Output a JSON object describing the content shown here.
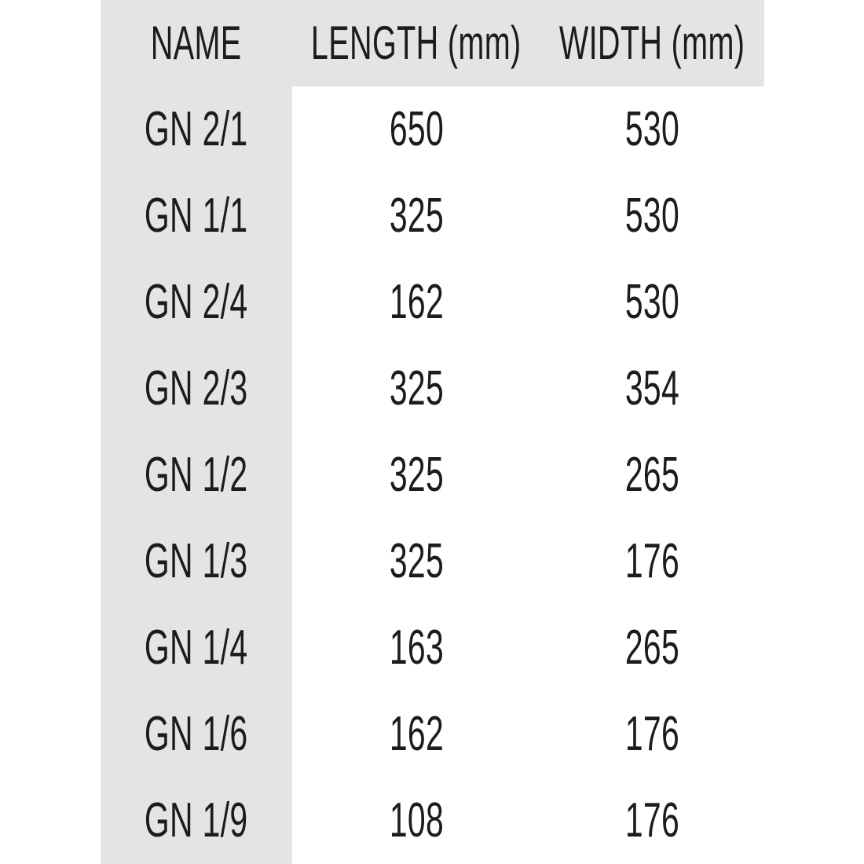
{
  "chart_data": {
    "type": "table",
    "title": "",
    "columns": [
      "NAME",
      "LENGTH (mm)",
      "WIDTH (mm)"
    ],
    "rows": [
      [
        "GN 2/1",
        "650",
        "530"
      ],
      [
        "GN 1/1",
        "325",
        "530"
      ],
      [
        "GN 2/4",
        "162",
        "530"
      ],
      [
        "GN 2/3",
        "325",
        "354"
      ],
      [
        "GN 1/2",
        "325",
        "265"
      ],
      [
        "GN 1/3",
        "325",
        "176"
      ],
      [
        "GN 1/4",
        "163",
        "265"
      ],
      [
        "GN 1/6",
        "162",
        "176"
      ],
      [
        "GN 1/9",
        "108",
        "176"
      ]
    ]
  },
  "colors": {
    "header_bg": "#e5e4e2",
    "name_column_bg": "#e5e4e2",
    "text": "#1c1c1a",
    "page_bg": "#ffffff"
  }
}
